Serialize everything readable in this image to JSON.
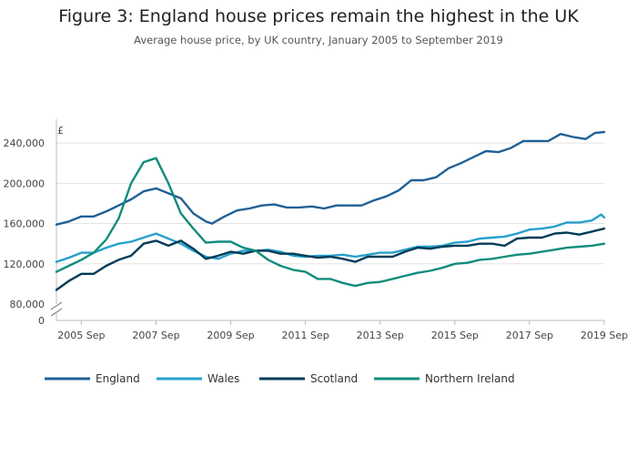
{
  "title": "Figure 3: England house prices remain the highest in the UK",
  "subtitle": "Average house price, by UK country, January 2005 to September 2019",
  "chart_data": {
    "type": "line",
    "title": "Figure 3: England house prices remain the highest in the UK",
    "subtitle": "Average house price, by UK country, January 2005 to September 2019",
    "y_unit": "£",
    "xlim": [
      "2005-01",
      "2019-09"
    ],
    "ylim": [
      80000,
      260000
    ],
    "axis_break": true,
    "y_ticks": [
      80000,
      120000,
      160000,
      200000,
      240000
    ],
    "y_tick_labels": [
      "80,000",
      "120,000",
      "160,000",
      "200,000",
      "240,000"
    ],
    "y_zero_label": "0",
    "x_ticks": [
      "2005-09",
      "2007-09",
      "2009-09",
      "2011-09",
      "2013-09",
      "2015-09",
      "2017-09",
      "2019-09"
    ],
    "x_tick_labels": [
      "2005 Sep",
      "2007 Sep",
      "2009 Sep",
      "2011 Sep",
      "2013 Sep",
      "2015 Sep",
      "2017 Sep",
      "2019 Sep"
    ],
    "grid": "horizontal",
    "legend_position": "bottom",
    "series": [
      {
        "name": "England",
        "color": "#206095",
        "points": [
          [
            "2005-01",
            159000
          ],
          [
            "2005-05",
            162000
          ],
          [
            "2005-09",
            167000
          ],
          [
            "2006-01",
            167000
          ],
          [
            "2006-05",
            172000
          ],
          [
            "2006-09",
            178000
          ],
          [
            "2007-01",
            184000
          ],
          [
            "2007-05",
            192000
          ],
          [
            "2007-09",
            195000
          ],
          [
            "2008-01",
            190000
          ],
          [
            "2008-05",
            185000
          ],
          [
            "2008-09",
            170000
          ],
          [
            "2009-01",
            162000
          ],
          [
            "2009-03",
            160000
          ],
          [
            "2009-07",
            167000
          ],
          [
            "2009-11",
            173000
          ],
          [
            "2010-03",
            175000
          ],
          [
            "2010-07",
            178000
          ],
          [
            "2010-11",
            179000
          ],
          [
            "2011-03",
            176000
          ],
          [
            "2011-07",
            176000
          ],
          [
            "2011-11",
            177000
          ],
          [
            "2012-03",
            175000
          ],
          [
            "2012-07",
            178000
          ],
          [
            "2012-11",
            178000
          ],
          [
            "2013-03",
            178000
          ],
          [
            "2013-07",
            183000
          ],
          [
            "2013-11",
            187000
          ],
          [
            "2014-03",
            193000
          ],
          [
            "2014-07",
            203000
          ],
          [
            "2014-11",
            203000
          ],
          [
            "2015-03",
            206000
          ],
          [
            "2015-07",
            215000
          ],
          [
            "2015-11",
            220000
          ],
          [
            "2016-03",
            226000
          ],
          [
            "2016-07",
            232000
          ],
          [
            "2016-11",
            231000
          ],
          [
            "2017-03",
            235000
          ],
          [
            "2017-07",
            242000
          ],
          [
            "2017-11",
            242000
          ],
          [
            "2018-03",
            242000
          ],
          [
            "2018-07",
            249000
          ],
          [
            "2018-11",
            246000
          ],
          [
            "2019-03",
            244000
          ],
          [
            "2019-06",
            250000
          ],
          [
            "2019-09",
            251000
          ]
        ]
      },
      {
        "name": "Wales",
        "color": "#27a0cc",
        "points": [
          [
            "2005-01",
            122000
          ],
          [
            "2005-05",
            126000
          ],
          [
            "2005-09",
            131000
          ],
          [
            "2006-01",
            131000
          ],
          [
            "2006-05",
            136000
          ],
          [
            "2006-09",
            140000
          ],
          [
            "2007-01",
            142000
          ],
          [
            "2007-05",
            146000
          ],
          [
            "2007-09",
            150000
          ],
          [
            "2008-01",
            145000
          ],
          [
            "2008-05",
            140000
          ],
          [
            "2008-09",
            133000
          ],
          [
            "2009-01",
            127000
          ],
          [
            "2009-05",
            125000
          ],
          [
            "2009-09",
            130000
          ],
          [
            "2010-01",
            133000
          ],
          [
            "2010-05",
            133000
          ],
          [
            "2010-09",
            134000
          ],
          [
            "2011-01",
            132000
          ],
          [
            "2011-05",
            128000
          ],
          [
            "2011-09",
            127000
          ],
          [
            "2012-01",
            128000
          ],
          [
            "2012-05",
            128000
          ],
          [
            "2012-09",
            129000
          ],
          [
            "2013-01",
            127000
          ],
          [
            "2013-05",
            129000
          ],
          [
            "2013-09",
            131000
          ],
          [
            "2014-01",
            131000
          ],
          [
            "2014-05",
            134000
          ],
          [
            "2014-09",
            137000
          ],
          [
            "2015-01",
            137000
          ],
          [
            "2015-05",
            138000
          ],
          [
            "2015-09",
            141000
          ],
          [
            "2016-01",
            142000
          ],
          [
            "2016-05",
            145000
          ],
          [
            "2016-09",
            146000
          ],
          [
            "2017-01",
            147000
          ],
          [
            "2017-05",
            150000
          ],
          [
            "2017-09",
            154000
          ],
          [
            "2018-01",
            155000
          ],
          [
            "2018-05",
            157000
          ],
          [
            "2018-09",
            161000
          ],
          [
            "2019-01",
            161000
          ],
          [
            "2019-05",
            163000
          ],
          [
            "2019-08",
            169000
          ],
          [
            "2019-09",
            166000
          ]
        ]
      },
      {
        "name": "Scotland",
        "color": "#003c57",
        "points": [
          [
            "2005-01",
            94000
          ],
          [
            "2005-05",
            103000
          ],
          [
            "2005-09",
            110000
          ],
          [
            "2006-01",
            110000
          ],
          [
            "2006-05",
            118000
          ],
          [
            "2006-09",
            124000
          ],
          [
            "2007-01",
            128000
          ],
          [
            "2007-05",
            140000
          ],
          [
            "2007-09",
            143000
          ],
          [
            "2008-01",
            138000
          ],
          [
            "2008-05",
            143000
          ],
          [
            "2008-09",
            135000
          ],
          [
            "2009-01",
            125000
          ],
          [
            "2009-05",
            128000
          ],
          [
            "2009-09",
            132000
          ],
          [
            "2010-01",
            130000
          ],
          [
            "2010-05",
            133000
          ],
          [
            "2010-09",
            133000
          ],
          [
            "2011-01",
            130000
          ],
          [
            "2011-05",
            130000
          ],
          [
            "2011-09",
            128000
          ],
          [
            "2012-01",
            126000
          ],
          [
            "2012-05",
            127000
          ],
          [
            "2012-09",
            125000
          ],
          [
            "2013-01",
            122000
          ],
          [
            "2013-05",
            127000
          ],
          [
            "2013-09",
            127000
          ],
          [
            "2014-01",
            127000
          ],
          [
            "2014-05",
            132000
          ],
          [
            "2014-09",
            136000
          ],
          [
            "2015-01",
            135000
          ],
          [
            "2015-05",
            137000
          ],
          [
            "2015-09",
            138000
          ],
          [
            "2016-01",
            138000
          ],
          [
            "2016-05",
            140000
          ],
          [
            "2016-09",
            140000
          ],
          [
            "2017-01",
            138000
          ],
          [
            "2017-05",
            145000
          ],
          [
            "2017-09",
            146000
          ],
          [
            "2018-01",
            146000
          ],
          [
            "2018-05",
            150000
          ],
          [
            "2018-09",
            151000
          ],
          [
            "2019-01",
            149000
          ],
          [
            "2019-05",
            152000
          ],
          [
            "2019-09",
            155000
          ]
        ]
      },
      {
        "name": "Northern Ireland",
        "color": "#118c7b",
        "points": [
          [
            "2005-01",
            112000
          ],
          [
            "2005-05",
            118000
          ],
          [
            "2005-09",
            124000
          ],
          [
            "2006-01",
            131000
          ],
          [
            "2006-05",
            144000
          ],
          [
            "2006-09",
            165000
          ],
          [
            "2007-01",
            200000
          ],
          [
            "2007-05",
            221000
          ],
          [
            "2007-09",
            225000
          ],
          [
            "2008-01",
            200000
          ],
          [
            "2008-05",
            170000
          ],
          [
            "2008-09",
            155000
          ],
          [
            "2009-01",
            141000
          ],
          [
            "2009-05",
            142000
          ],
          [
            "2009-09",
            142000
          ],
          [
            "2010-01",
            136000
          ],
          [
            "2010-05",
            133000
          ],
          [
            "2010-09",
            124000
          ],
          [
            "2011-01",
            118000
          ],
          [
            "2011-05",
            114000
          ],
          [
            "2011-09",
            112000
          ],
          [
            "2012-01",
            105000
          ],
          [
            "2012-05",
            105000
          ],
          [
            "2012-09",
            101000
          ],
          [
            "2013-01",
            98000
          ],
          [
            "2013-05",
            101000
          ],
          [
            "2013-09",
            102000
          ],
          [
            "2014-01",
            105000
          ],
          [
            "2014-05",
            108000
          ],
          [
            "2014-09",
            111000
          ],
          [
            "2015-01",
            113000
          ],
          [
            "2015-05",
            116000
          ],
          [
            "2015-09",
            120000
          ],
          [
            "2016-01",
            121000
          ],
          [
            "2016-05",
            124000
          ],
          [
            "2016-09",
            125000
          ],
          [
            "2017-01",
            127000
          ],
          [
            "2017-05",
            129000
          ],
          [
            "2017-09",
            130000
          ],
          [
            "2018-01",
            132000
          ],
          [
            "2018-05",
            134000
          ],
          [
            "2018-09",
            136000
          ],
          [
            "2019-01",
            137000
          ],
          [
            "2019-05",
            138000
          ],
          [
            "2019-09",
            140000
          ]
        ]
      }
    ]
  }
}
